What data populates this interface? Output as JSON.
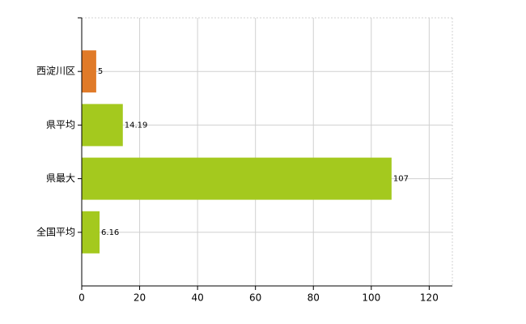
{
  "chart_data": {
    "type": "hbar",
    "categories": [
      "西淀川区",
      "県平均",
      "県最大",
      "全国平均"
    ],
    "values": [
      5,
      14.19,
      107,
      6.16
    ],
    "colors": [
      "#e07a28",
      "#a4c91e",
      "#a4c91e",
      "#a4c91e"
    ],
    "xlim": [
      0,
      128
    ],
    "xticks": [
      0,
      20,
      40,
      60,
      80,
      100,
      120
    ],
    "grid": true
  }
}
